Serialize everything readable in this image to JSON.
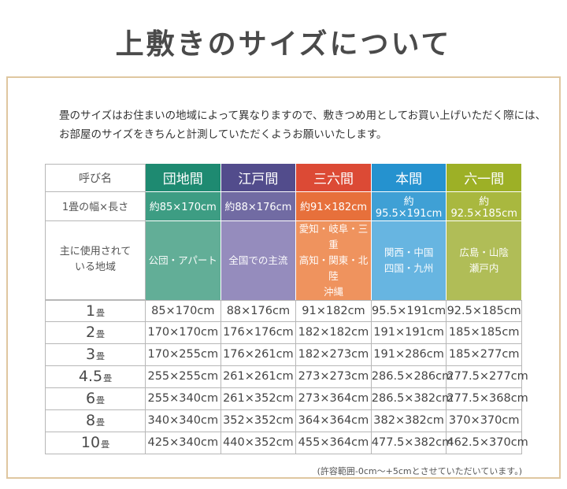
{
  "page": {
    "title": "上敷きのサイズについて",
    "intro_line1": "畳のサイズはお住まいの地域によって異なりますので、敷きつめ用としてお買い上げいただく際には、",
    "intro_line2": "お部屋のサイズをきちんと計測していただくようお願いいたします。",
    "footnote": "(許容範囲-0cm〜+5cmとさせていただいています。)"
  },
  "table": {
    "corner_label": "呼び名",
    "size_row_label": "1畳の幅×長さ",
    "region_row_label_line1": "主に使用されて",
    "region_row_label_line2": "いる地域",
    "columns": [
      {
        "name": "団地間",
        "color": "#1e8a71",
        "color_mid": "#3d9d83",
        "color_light": "#62ae97",
        "size": "約85×170cm",
        "region_lines": [
          "公団・アパート"
        ]
      },
      {
        "name": "江戸間",
        "color": "#524c8c",
        "color_mid": "#716ba3",
        "color_light": "#958cbd",
        "size": "約88×176cm",
        "region_lines": [
          "全国での主流"
        ]
      },
      {
        "name": "三六間",
        "color": "#dc4a35",
        "color_mid": "#e7703b",
        "color_light": "#ef935e",
        "size": "約91×182cm",
        "region_lines": [
          "愛知・岐阜・三重",
          "高知・関東・北陸",
          "沖縄"
        ]
      },
      {
        "name": "本間",
        "color": "#2592cf",
        "color_mid": "#3fa0d5",
        "color_light": "#67b5e1",
        "size": "約95.5×191cm",
        "region_lines": [
          "関西・中国",
          "四国・九州"
        ]
      },
      {
        "name": "六一間",
        "color": "#9db026",
        "color_mid": "#a9b83f",
        "color_light": "#b0bd57",
        "size": "約92.5×185cm",
        "region_lines": [
          "広島・山陰",
          "瀬戸内"
        ]
      }
    ],
    "rows": [
      {
        "label_num": "1",
        "label_unit": "畳",
        "values": [
          "85×170cm",
          "88×176cm",
          "91×182cm",
          "95.5×191cm",
          "92.5×185cm"
        ]
      },
      {
        "label_num": "2",
        "label_unit": "畳",
        "values": [
          "170×170cm",
          "176×176cm",
          "182×182cm",
          "191×191cm",
          "185×185cm"
        ]
      },
      {
        "label_num": "3",
        "label_unit": "畳",
        "values": [
          "170×255cm",
          "176×261cm",
          "182×273cm",
          "191×286cm",
          "185×277cm"
        ]
      },
      {
        "label_num": "4.5",
        "label_unit": "畳",
        "values": [
          "255×255cm",
          "261×261cm",
          "273×273cm",
          "286.5×286cm",
          "277.5×277cm"
        ]
      },
      {
        "label_num": "6",
        "label_unit": "畳",
        "values": [
          "255×340cm",
          "261×352cm",
          "273×364cm",
          "286.5×382cm",
          "277.5×368cm"
        ]
      },
      {
        "label_num": "8",
        "label_unit": "畳",
        "values": [
          "340×340cm",
          "352×352cm",
          "364×364cm",
          "382×382cm",
          "370×370cm"
        ]
      },
      {
        "label_num": "10",
        "label_unit": "畳",
        "values": [
          "425×340cm",
          "440×352cm",
          "455×364cm",
          "477.5×382cm",
          "462.5×370cm"
        ]
      }
    ]
  }
}
